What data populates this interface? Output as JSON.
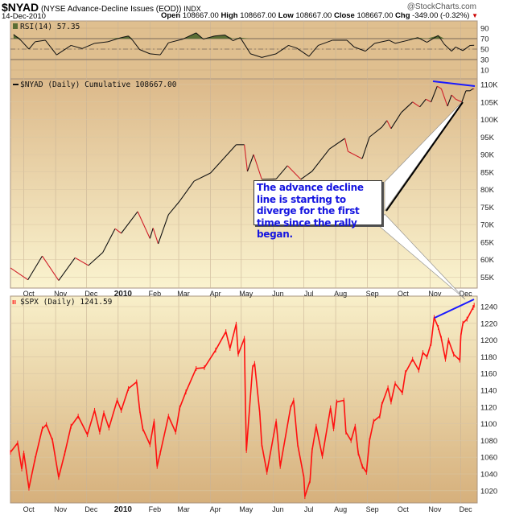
{
  "header": {
    "symbol": "$NYAD",
    "name": "(NYSE Advance-Decline Issues (EOD))",
    "exchange": "INDX",
    "brand": "@StockCharts.com",
    "date": "14-Dec-2010",
    "open_label": "Open",
    "open": "108667.00",
    "high_label": "High",
    "high": "108667.00",
    "low_label": "Low",
    "low": "108667.00",
    "close_label": "Close",
    "close": "108667.00",
    "chg_label": "Chg",
    "chg": "-349.00 (-0.32%)",
    "chg_color": "#cc0000"
  },
  "annotation": {
    "text": "The advance decline line is starting to diverge for the first time since the rally began.",
    "text_color": "#1515e0",
    "trendline_color": "#1a1aff"
  },
  "chart_data": [
    {
      "type": "line",
      "panel": "rsi",
      "legend": "RSI(14) 57.35",
      "xlim": [
        "2009-09-18",
        "2010-12-17"
      ],
      "ylim": [
        0,
        100
      ],
      "yticks": [
        "90",
        "70",
        "50",
        "30",
        "10"
      ],
      "ytick_values": [
        90,
        70,
        50,
        30,
        10
      ],
      "reference_lines": [
        70,
        50,
        30
      ],
      "fill_above": 70,
      "fill_color": "#5a6e35",
      "x": [
        "2009-09-21",
        "2009-09-28",
        "2009-10-06",
        "2009-10-12",
        "2009-10-22",
        "2009-11-02",
        "2009-11-16",
        "2009-11-27",
        "2009-12-09",
        "2009-12-22",
        "2010-01-04",
        "2010-01-11",
        "2010-01-15",
        "2010-01-22",
        "2010-02-01",
        "2010-02-11",
        "2010-02-19",
        "2010-03-05",
        "2010-03-18",
        "2010-03-25",
        "2010-04-05",
        "2010-04-15",
        "2010-04-23",
        "2010-04-30",
        "2010-05-10",
        "2010-05-21",
        "2010-06-04",
        "2010-06-16",
        "2010-06-24",
        "2010-07-06",
        "2010-07-15",
        "2010-07-29",
        "2010-08-12",
        "2010-08-19",
        "2010-08-30",
        "2010-09-08",
        "2010-09-22",
        "2010-09-28",
        "2010-10-11",
        "2010-10-20",
        "2010-10-29",
        "2010-11-09",
        "2010-11-15",
        "2010-11-22",
        "2010-11-26",
        "2010-12-03",
        "2010-12-10",
        "2010-12-14"
      ],
      "values": [
        78,
        67,
        50,
        64,
        67,
        39,
        57,
        51,
        61,
        64,
        72,
        75,
        67,
        49,
        41,
        39,
        62,
        69,
        81,
        69,
        75,
        77,
        66,
        72,
        41,
        34,
        41,
        57,
        52,
        36,
        57,
        67,
        67,
        54,
        46,
        61,
        67,
        61,
        67,
        72,
        63,
        76,
        59,
        46,
        54,
        47,
        57,
        57.35
      ]
    },
    {
      "type": "line",
      "panel": "nyad",
      "legend": "$NYAD (Daily) Cumulative 108667.00",
      "xlim": [
        "2009-09-18",
        "2010-12-17"
      ],
      "ylim": [
        53,
        112
      ],
      "yticks": [
        "110K",
        "105K",
        "100K",
        "95K",
        "90K",
        "85K",
        "80K",
        "75K",
        "70K",
        "65K",
        "60K",
        "55K"
      ],
      "ytick_values": [
        110,
        105,
        100,
        95,
        90,
        85,
        80,
        75,
        70,
        65,
        60,
        55
      ],
      "up_color": "#111111",
      "down_color": "#d0202a",
      "x": [
        "2009-09-18",
        "2009-10-05",
        "2009-10-19",
        "2009-11-04",
        "2009-11-20",
        "2009-12-03",
        "2009-12-17",
        "2009-12-29",
        "2010-01-04",
        "2010-01-20",
        "2010-02-01",
        "2010-02-04",
        "2010-02-09",
        "2010-02-19",
        "2010-03-02",
        "2010-03-16",
        "2010-04-01",
        "2010-04-14",
        "2010-04-26",
        "2010-05-04",
        "2010-05-07",
        "2010-05-13",
        "2010-05-21",
        "2010-06-04",
        "2010-06-15",
        "2010-06-28",
        "2010-07-09",
        "2010-07-26",
        "2010-08-10",
        "2010-08-13",
        "2010-08-26",
        "2010-08-27",
        "2010-09-03",
        "2010-09-15",
        "2010-09-20",
        "2010-09-24",
        "2010-10-04",
        "2010-10-15",
        "2010-10-22",
        "2010-10-28",
        "2010-11-02",
        "2010-11-08",
        "2010-11-12",
        "2010-11-18",
        "2010-11-22",
        "2010-11-26",
        "2010-12-02",
        "2010-12-06",
        "2010-12-10",
        "2010-12-13",
        "2010-12-14"
      ],
      "values": [
        57.6,
        54.2,
        61,
        54,
        60.5,
        58.3,
        62,
        68.8,
        67.5,
        73.7,
        66,
        69,
        64.5,
        72.8,
        76.7,
        82.4,
        84.7,
        88.9,
        92.8,
        92.8,
        85.2,
        90,
        82.9,
        83,
        86.8,
        82.9,
        85.2,
        91.6,
        94.6,
        90.9,
        88.9,
        88.9,
        95,
        97.8,
        99.7,
        97.4,
        102,
        105,
        103.6,
        105.8,
        105,
        109.5,
        108.8,
        103.8,
        107,
        105.8,
        105,
        108.2,
        108.2,
        108.8,
        108.667
      ],
      "month_labels": [
        "Oct",
        "Nov",
        "Dec",
        "2010",
        "Feb",
        "Mar",
        "Apr",
        "May",
        "Jun",
        "Jul",
        "Aug",
        "Sep",
        "Oct",
        "Nov",
        "Dec"
      ]
    },
    {
      "type": "line",
      "panel": "spx",
      "legend": "$SPX (Daily) 1241.59",
      "xlim": [
        "2009-09-18",
        "2010-12-17"
      ],
      "ylim": [
        1005,
        1250
      ],
      "yticks": [
        "1240",
        "1220",
        "1200",
        "1180",
        "1160",
        "1140",
        "1120",
        "1100",
        "1080",
        "1060",
        "1040",
        "1020"
      ],
      "ytick_values": [
        1240,
        1220,
        1200,
        1180,
        1160,
        1140,
        1120,
        1100,
        1080,
        1060,
        1040,
        1020
      ],
      "color": "#ff1010",
      "x": [
        "2009-09-18",
        "2009-09-25",
        "2009-09-29",
        "2009-10-01",
        "2009-10-06",
        "2009-10-12",
        "2009-10-19",
        "2009-10-23",
        "2009-10-29",
        "2009-11-04",
        "2009-11-10",
        "2009-11-16",
        "2009-11-23",
        "2009-12-02",
        "2009-12-09",
        "2009-12-14",
        "2009-12-18",
        "2009-12-23",
        "2009-12-31",
        "2010-01-04",
        "2010-01-11",
        "2010-01-19",
        "2010-01-22",
        "2010-01-25",
        "2010-02-01",
        "2010-02-05",
        "2010-02-08",
        "2010-02-11",
        "2010-02-19",
        "2010-02-26",
        "2010-03-02",
        "2010-03-08",
        "2010-03-18",
        "2010-03-26",
        "2010-04-06",
        "2010-04-16",
        "2010-04-20",
        "2010-04-26",
        "2010-04-28",
        "2010-05-04",
        "2010-05-05",
        "2010-05-06",
        "2010-05-12",
        "2010-05-14",
        "2010-05-19",
        "2010-05-21",
        "2010-05-26",
        "2010-06-04",
        "2010-06-08",
        "2010-06-18",
        "2010-06-21",
        "2010-06-25",
        "2010-07-01",
        "2010-07-02",
        "2010-07-07",
        "2010-07-09",
        "2010-07-13",
        "2010-07-19",
        "2010-07-27",
        "2010-07-30",
        "2010-08-02",
        "2010-08-09",
        "2010-08-11",
        "2010-08-16",
        "2010-08-20",
        "2010-08-23",
        "2010-08-27",
        "2010-08-31",
        "2010-09-03",
        "2010-09-07",
        "2010-09-13",
        "2010-09-15",
        "2010-09-21",
        "2010-09-24",
        "2010-09-28",
        "2010-10-05",
        "2010-10-08",
        "2010-10-15",
        "2010-10-21",
        "2010-10-25",
        "2010-10-29",
        "2010-11-02",
        "2010-11-05",
        "2010-11-09",
        "2010-11-12",
        "2010-11-16",
        "2010-11-19",
        "2010-11-24",
        "2010-11-30",
        "2010-12-01",
        "2010-12-03",
        "2010-12-07",
        "2010-12-13",
        "2010-12-14"
      ],
      "values": [
        1066,
        1077,
        1046,
        1065,
        1023,
        1058,
        1094,
        1099,
        1080,
        1036,
        1065,
        1097,
        1109,
        1087,
        1116,
        1090,
        1113,
        1095,
        1128,
        1116,
        1142,
        1150,
        1116,
        1094,
        1075,
        1103,
        1049,
        1065,
        1109,
        1090,
        1119,
        1138,
        1166,
        1167,
        1188,
        1210,
        1190,
        1219,
        1183,
        1202,
        1126,
        1068,
        1167,
        1172,
        1113,
        1075,
        1042,
        1103,
        1049,
        1119,
        1128,
        1075,
        1036,
        1013,
        1032,
        1068,
        1097,
        1061,
        1119,
        1094,
        1126,
        1128,
        1090,
        1080,
        1097,
        1065,
        1049,
        1042,
        1080,
        1103,
        1109,
        1123,
        1143,
        1126,
        1148,
        1137,
        1161,
        1177,
        1164,
        1185,
        1180,
        1196,
        1227,
        1215,
        1202,
        1177,
        1200,
        1183,
        1176,
        1205,
        1220,
        1225,
        1239,
        1241.59
      ],
      "month_labels": [
        "Oct",
        "Nov",
        "Dec",
        "2010",
        "Feb",
        "Mar",
        "Apr",
        "May",
        "Jun",
        "Jul",
        "Aug",
        "Sep",
        "Oct",
        "Nov",
        "Dec"
      ]
    }
  ]
}
